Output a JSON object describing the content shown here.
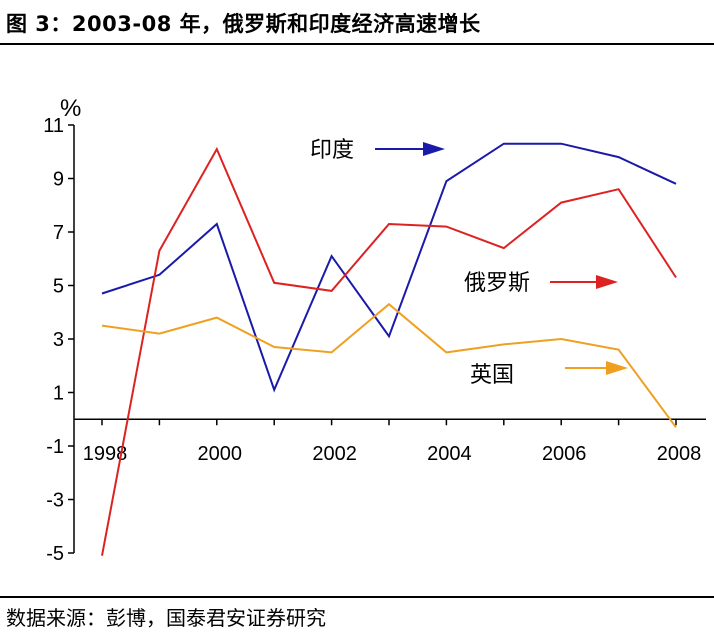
{
  "title": "图 3：2003-08 年，俄罗斯和印度经济高速增长",
  "source": "数据来源：彭博，国泰君安证券研究",
  "chart_data": {
    "type": "line",
    "ylabel": "%",
    "xlabel": "",
    "ylim": [
      -5,
      11
    ],
    "y_ticks": [
      11,
      9,
      7,
      5,
      3,
      1,
      -1,
      -3,
      -5
    ],
    "x_tick_labels": [
      "1998",
      "2000",
      "2002",
      "2004",
      "2006",
      "2008"
    ],
    "x": [
      1998,
      1999,
      2000,
      2001,
      2002,
      2003,
      2004,
      2005,
      2006,
      2007,
      2008
    ],
    "grid": false,
    "series": [
      {
        "name": "印度",
        "color": "#1a1aaa",
        "values": [
          4.7,
          5.4,
          7.3,
          1.1,
          6.1,
          3.1,
          8.9,
          10.3,
          10.3,
          9.8,
          8.8
        ]
      },
      {
        "name": "俄罗斯",
        "color": "#dd2222",
        "values": [
          -5.1,
          6.3,
          10.1,
          5.1,
          4.8,
          7.3,
          7.2,
          6.4,
          8.1,
          8.6,
          5.3
        ]
      },
      {
        "name": "英国",
        "color": "#f0a020",
        "values": [
          3.5,
          3.2,
          3.8,
          2.7,
          2.5,
          4.3,
          2.5,
          2.8,
          3.0,
          2.6,
          -0.3
        ]
      }
    ]
  }
}
